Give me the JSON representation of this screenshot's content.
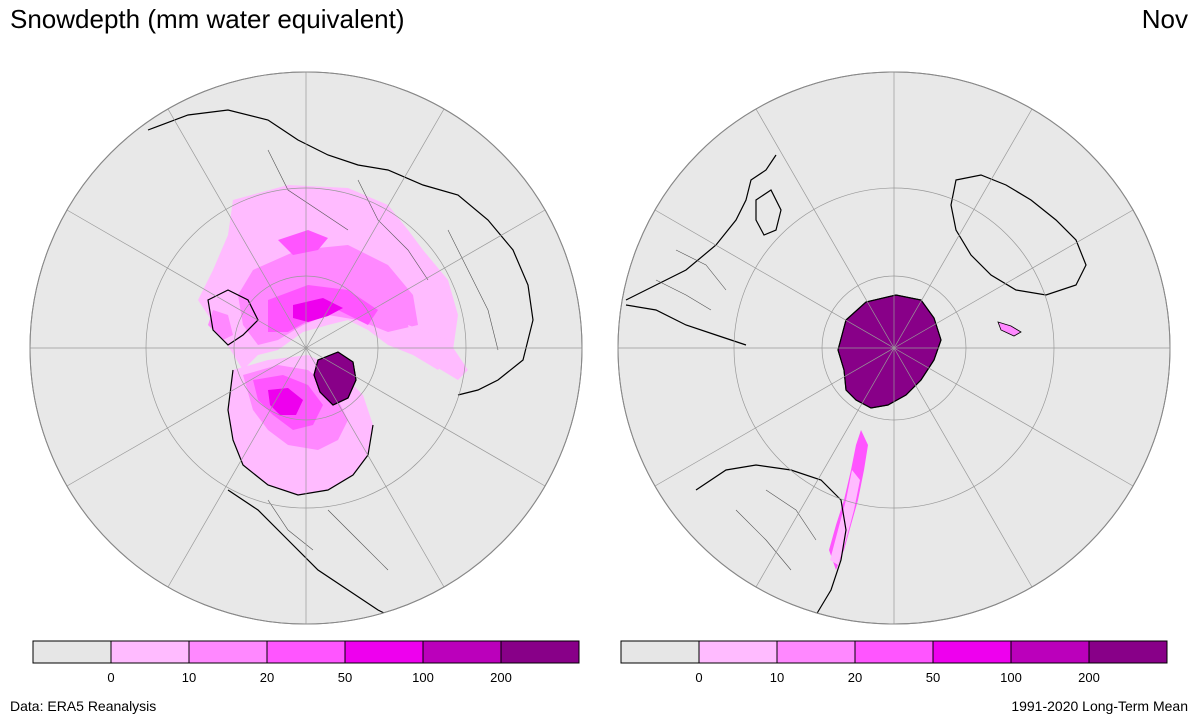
{
  "title": "Snowdepth (mm water equivalent)",
  "month": "Nov",
  "source": "Data: ERA5 Reanalysis",
  "period": "1991-2020 Long-Term Mean",
  "legend": {
    "bins": [
      {
        "color": "#e6e6e6"
      },
      {
        "color": "#ffbbff"
      },
      {
        "color": "#ff88ff"
      },
      {
        "color": "#ff55ff"
      },
      {
        "color": "#ee00ee"
      },
      {
        "color": "#bb00bb"
      },
      {
        "color": "#880088"
      }
    ],
    "tick_labels": [
      "0",
      "10",
      "20",
      "50",
      "100",
      "200"
    ]
  },
  "colors": {
    "ocean_background": "#e8e8e8",
    "coastline": "#000000",
    "borders": "#555555",
    "graticule": "#999999"
  },
  "maps": [
    {
      "hemisphere": "Northern",
      "projection": "polar stereographic"
    },
    {
      "hemisphere": "Southern",
      "projection": "polar stereographic"
    }
  ]
}
